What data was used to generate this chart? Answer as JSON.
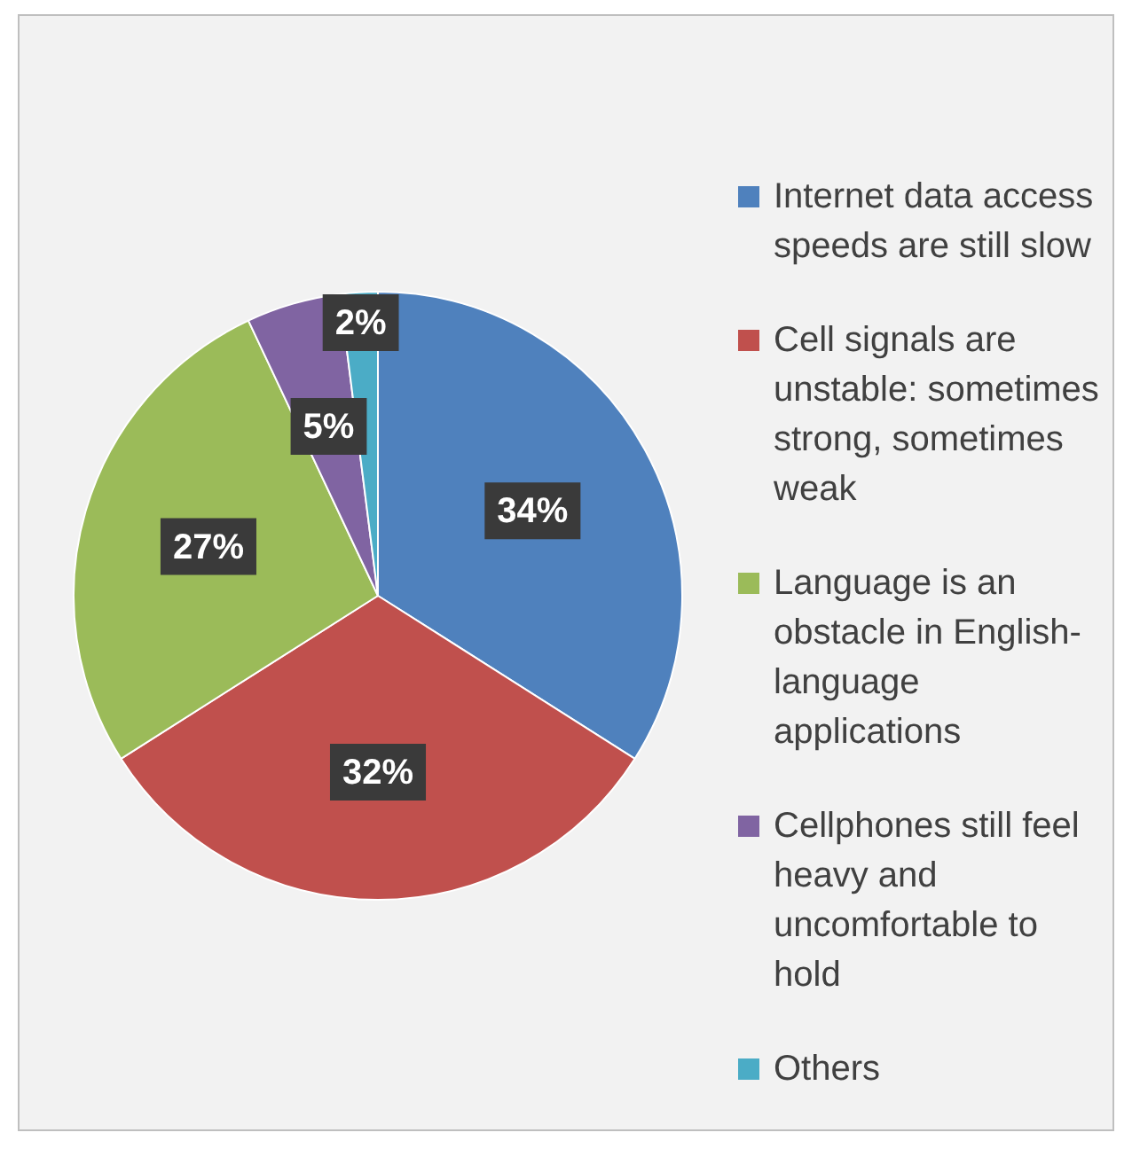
{
  "chart_data": {
    "type": "pie",
    "categories": [
      "Internet data access speeds are still slow",
      "Cell signals are unstable: sometimes strong, sometimes weak",
      "Language is an obstacle in English-language applications",
      "Cellphones still feel heavy and uncomfortable to hold",
      "Others"
    ],
    "values": [
      34,
      32,
      27,
      5,
      2
    ],
    "colors": [
      "#4f81bd",
      "#c0504d",
      "#9bbb59",
      "#8064a2",
      "#4bacc6"
    ],
    "value_labels": [
      "34%",
      "32%",
      "27%",
      "5%",
      "2%"
    ],
    "legend": "right"
  }
}
